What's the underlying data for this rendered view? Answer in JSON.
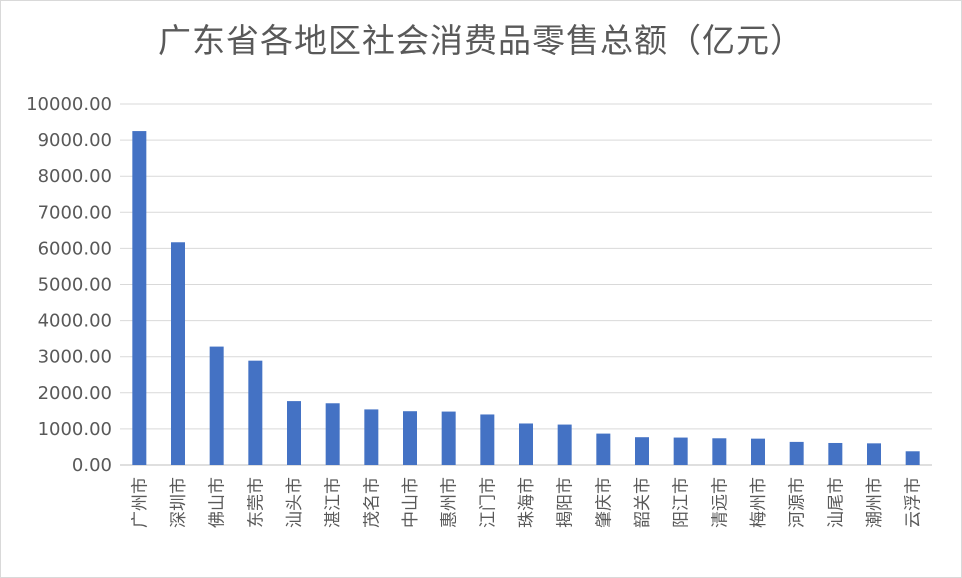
{
  "chart_data": {
    "type": "bar",
    "title": "广东省各地区社会消费品零售总额（亿元）",
    "xlabel": "",
    "ylabel": "",
    "ylim": [
      0,
      10000
    ],
    "ytick_step": 1000,
    "ytick_labels": [
      "0.00",
      "1000.00",
      "2000.00",
      "3000.00",
      "4000.00",
      "5000.00",
      "6000.00",
      "7000.00",
      "8000.00",
      "9000.00",
      "10000.00"
    ],
    "grid": true,
    "legend": "none",
    "bar_color": "#4472c4",
    "categories": [
      "广州市",
      "深圳市",
      "佛山市",
      "东莞市",
      "汕头市",
      "湛江市",
      "茂名市",
      "中山市",
      "惠州市",
      "江门市",
      "珠海市",
      "揭阳市",
      "肇庆市",
      "韶关市",
      "阳江市",
      "清远市",
      "梅州市",
      "河源市",
      "汕尾市",
      "潮州市",
      "云浮市"
    ],
    "values": [
      9250,
      6170,
      3280,
      2890,
      1770,
      1710,
      1540,
      1490,
      1480,
      1400,
      1150,
      1120,
      870,
      770,
      760,
      740,
      730,
      640,
      610,
      600,
      380
    ]
  }
}
